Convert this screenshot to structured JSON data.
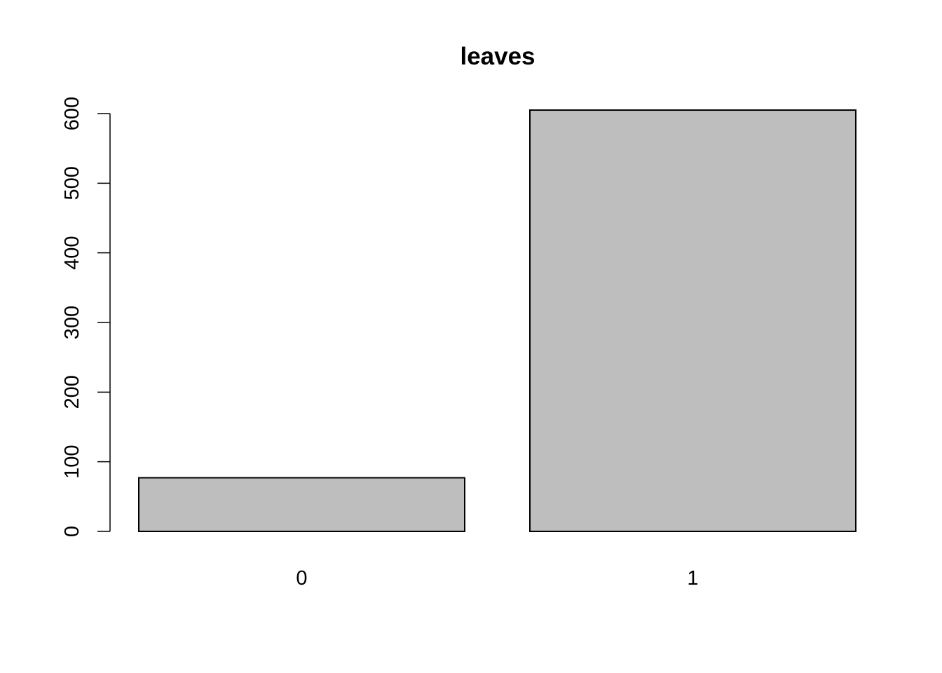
{
  "chart_data": {
    "type": "bar",
    "title": "leaves",
    "xlabel": "",
    "ylabel": "",
    "categories": [
      "0",
      "1"
    ],
    "values": [
      77,
      605
    ],
    "ylim": [
      0,
      600
    ],
    "yticks": [
      "0",
      "100",
      "200",
      "300",
      "400",
      "500",
      "600"
    ],
    "grid": false,
    "legend": "none",
    "bar_fill": "#bebebe",
    "bar_stroke": "#000000"
  }
}
